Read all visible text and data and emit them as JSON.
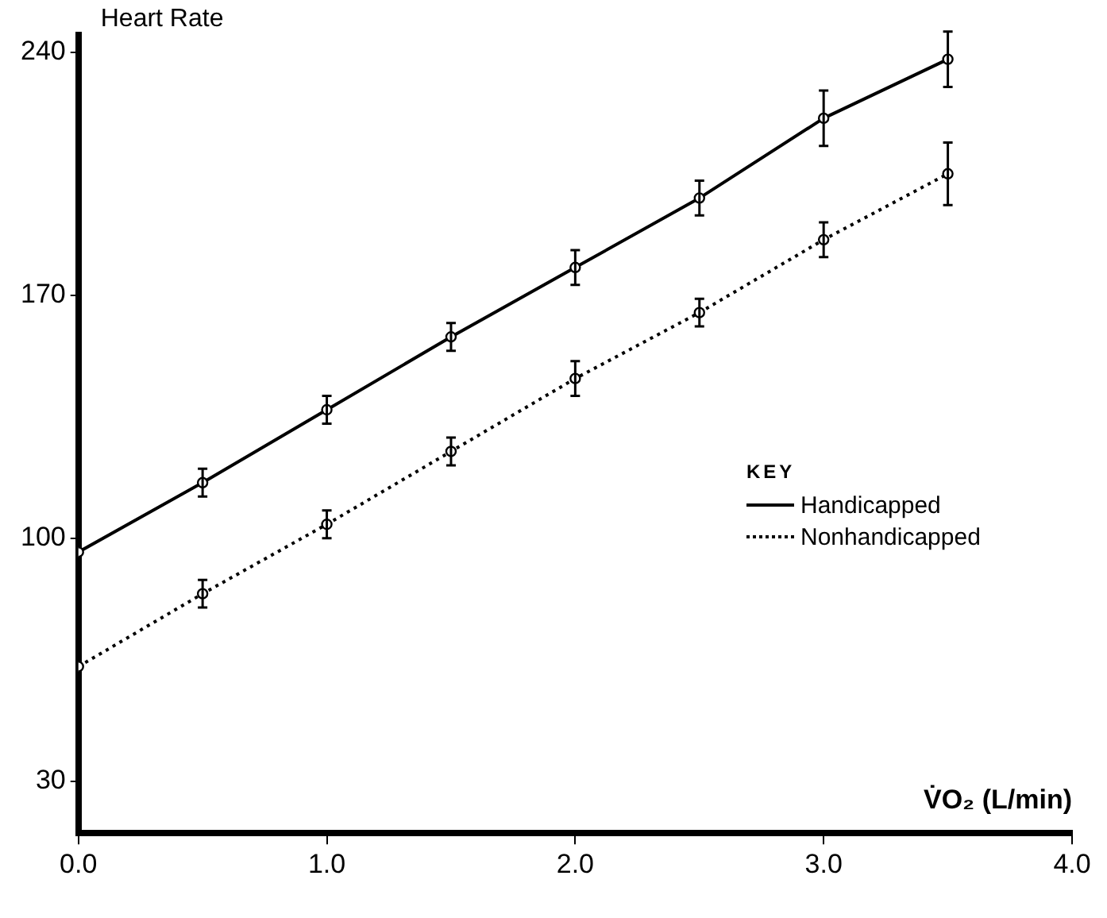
{
  "chart_data": {
    "type": "line",
    "ylabel": "Heart Rate",
    "xlabel": "V̇O₂ (L/min)",
    "legend_title": "KEY",
    "x": [
      0,
      0.5,
      1.0,
      1.5,
      2.0,
      2.5,
      3.0,
      3.5
    ],
    "xlim": [
      0,
      4
    ],
    "xticks": [
      {
        "value": 0,
        "label": "0.0"
      },
      {
        "value": 1,
        "label": "1.0"
      },
      {
        "value": 2,
        "label": "2.0"
      },
      {
        "value": 3,
        "label": "3.0"
      },
      {
        "value": 4,
        "label": "4.0"
      }
    ],
    "ylim": [
      15,
      245
    ],
    "yticks": [
      30,
      100,
      170,
      240
    ],
    "series": [
      {
        "name": "Handicapped",
        "color": "#000000",
        "line_style": "solid",
        "values": [
          96,
          116,
          137,
          158,
          178,
          198,
          221,
          238
        ],
        "errors": [
          null,
          4,
          4,
          4,
          5,
          5,
          8,
          8
        ]
      },
      {
        "name": "Nonhandicapped",
        "color": "#000000",
        "line_style": "dotted",
        "values": [
          63,
          84,
          104,
          125,
          146,
          165,
          186,
          205
        ],
        "errors": [
          null,
          4,
          4,
          4,
          5,
          4,
          5,
          9
        ]
      }
    ],
    "marker": "circle",
    "grid": false,
    "legend": "right"
  }
}
